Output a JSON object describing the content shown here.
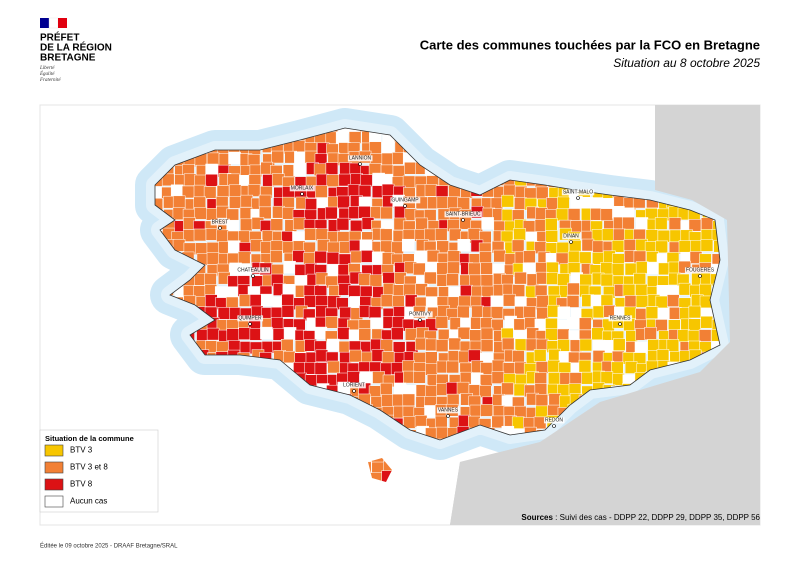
{
  "header": {
    "logo_lines": [
      "PRÉFET",
      "DE LA RÉGION",
      "BRETAGNE"
    ],
    "motto": [
      "Liberté",
      "Égalité",
      "Fraternité"
    ]
  },
  "title": "Carte des communes touchées par la FCO en Bretagne",
  "subtitle": "Situation au 8 octobre 2025",
  "map": {
    "cities": [
      "LANNION",
      "MORLAIX",
      "GUINGAMP",
      "SAINT-BRIEUC",
      "SAINT-MALO",
      "DINAN",
      "BREST",
      "CHATEAULIN",
      "FOUGERES",
      "QUIMPER",
      "PONTIVY",
      "RENNES",
      "LORIENT",
      "VANNES",
      "REDON"
    ]
  },
  "legend": {
    "title": "Situation de la commune",
    "items": [
      {
        "label": "BTV 3",
        "color": "#f7c600"
      },
      {
        "label": "BTV 3 et 8",
        "color": "#f28035"
      },
      {
        "label": "BTV 8",
        "color": "#dc1215"
      },
      {
        "label": "Aucun cas",
        "color": "#ffffff"
      }
    ]
  },
  "sources": {
    "label": "Sources",
    "text": " : Suivi des cas - DDPP 22, DDPP 29, DDPP 35, DDPP 56"
  },
  "footer": "Éditée le 09 octobre 2025 - DRAAF Bretagne/SRAL"
}
